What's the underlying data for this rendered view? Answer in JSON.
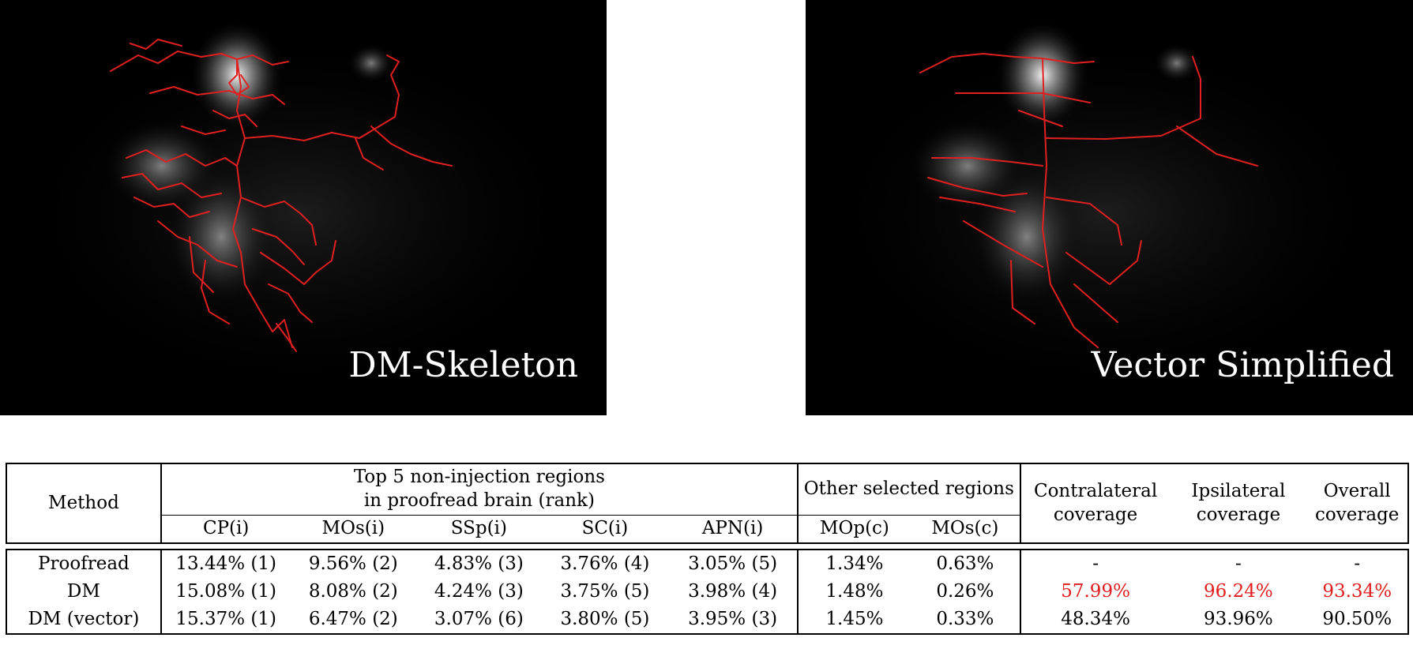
{
  "figure": {
    "panels": [
      {
        "label": "DM-Skeleton"
      },
      {
        "label": "Vector Simplified"
      }
    ],
    "colors": {
      "background": "#000000",
      "trace": "#e02020",
      "signal": "#ffffff"
    }
  },
  "table": {
    "method_header": "Method",
    "top5_header_line1": "Top 5 non-injection regions",
    "top5_header_line2": "in proofread brain (rank)",
    "other_header": "Other selected regions",
    "contra_line1": "Contralateral",
    "contra_line2": "coverage",
    "ipsi_line1": "Ipsilateral",
    "ipsi_line2": "coverage",
    "overall_line1": "Overall",
    "overall_line2": "coverage",
    "subheaders": [
      "CP(i)",
      "MOs(i)",
      "SSp(i)",
      "SC(i)",
      "APN(i)",
      "MOp(c)",
      "MOs(c)"
    ],
    "rows": [
      {
        "method": "Proofread",
        "values": [
          "13.44% (1)",
          "9.56% (2)",
          "4.83% (3)",
          "3.76% (4)",
          "3.05% (5)",
          "1.34%",
          "0.63%"
        ],
        "coverage": [
          "-",
          "-",
          "-"
        ]
      },
      {
        "method": "DM",
        "values": [
          "15.08% (1)",
          "8.08% (2)",
          "4.24% (3)",
          "3.75% (5)",
          "3.98% (4)",
          "1.48%",
          "0.26%"
        ],
        "coverage": [
          "57.99%",
          "96.24%",
          "93.34%"
        ]
      },
      {
        "method": "DM (vector)",
        "values": [
          "15.37% (1)",
          "6.47% (2)",
          "3.07% (6)",
          "3.80% (5)",
          "3.95% (3)",
          "1.45%",
          "0.33%"
        ],
        "coverage": [
          "48.34%",
          "93.96%",
          "90.50%"
        ]
      }
    ],
    "highlight_color": "#e11d1d"
  }
}
